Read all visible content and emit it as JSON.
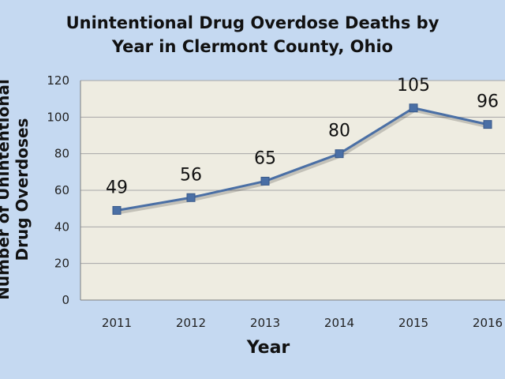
{
  "chart_data": {
    "type": "line",
    "title_line1": "Unintentional Drug Overdose Deaths by",
    "title_line2": "Year in Clermont County, Ohio",
    "xlabel": "Year",
    "ylabel_line1": "Number of Unintentional",
    "ylabel_line2": "Drug Overdoses",
    "categories": [
      "2011",
      "2012",
      "2013",
      "2014",
      "2015",
      "2016"
    ],
    "series": [
      {
        "values": [
          49,
          56,
          65,
          80,
          105,
          96
        ],
        "color": "#4a6fa5"
      }
    ],
    "ylim": [
      0,
      120
    ],
    "yticks": [
      0,
      20,
      40,
      60,
      80,
      100,
      120
    ],
    "grid": true,
    "plot_background": "#eeece1",
    "legend": "none"
  }
}
